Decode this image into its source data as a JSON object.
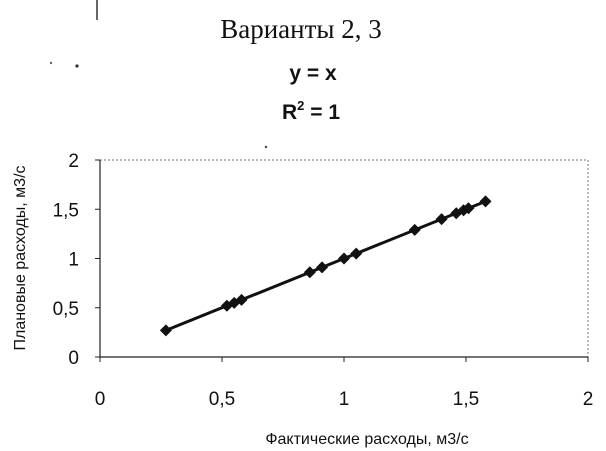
{
  "page_title": "Варианты 2, 3",
  "chart_data": {
    "type": "scatter",
    "trendline": {
      "type": "linear",
      "equation": "y = x",
      "r2_base": "R",
      "r2_exp": "2",
      "r2_value": " = 1"
    },
    "xlabel": "Фактические расходы, м3/с",
    "ylabel": "Плановые расходы, м3/с",
    "xlim": [
      0,
      2
    ],
    "ylim": [
      0,
      2
    ],
    "xticks": [
      0,
      0.5,
      1,
      1.5,
      2
    ],
    "yticks": [
      0,
      0.5,
      1,
      1.5,
      2
    ],
    "xtick_labels": [
      "0",
      "0,5",
      "1",
      "1,5",
      "2"
    ],
    "ytick_labels": [
      "0",
      "0,5",
      "1",
      "1,5",
      "2"
    ],
    "grid": false,
    "marker": "diamond",
    "series": [
      {
        "x": [
          0.27,
          0.52,
          0.55,
          0.58,
          0.86,
          0.91,
          1.0,
          1.05,
          1.29,
          1.4,
          1.46,
          1.49,
          1.51,
          1.58
        ],
        "y": [
          0.27,
          0.52,
          0.55,
          0.58,
          0.86,
          0.91,
          1.0,
          1.05,
          1.29,
          1.4,
          1.46,
          1.49,
          1.51,
          1.58
        ]
      }
    ]
  }
}
